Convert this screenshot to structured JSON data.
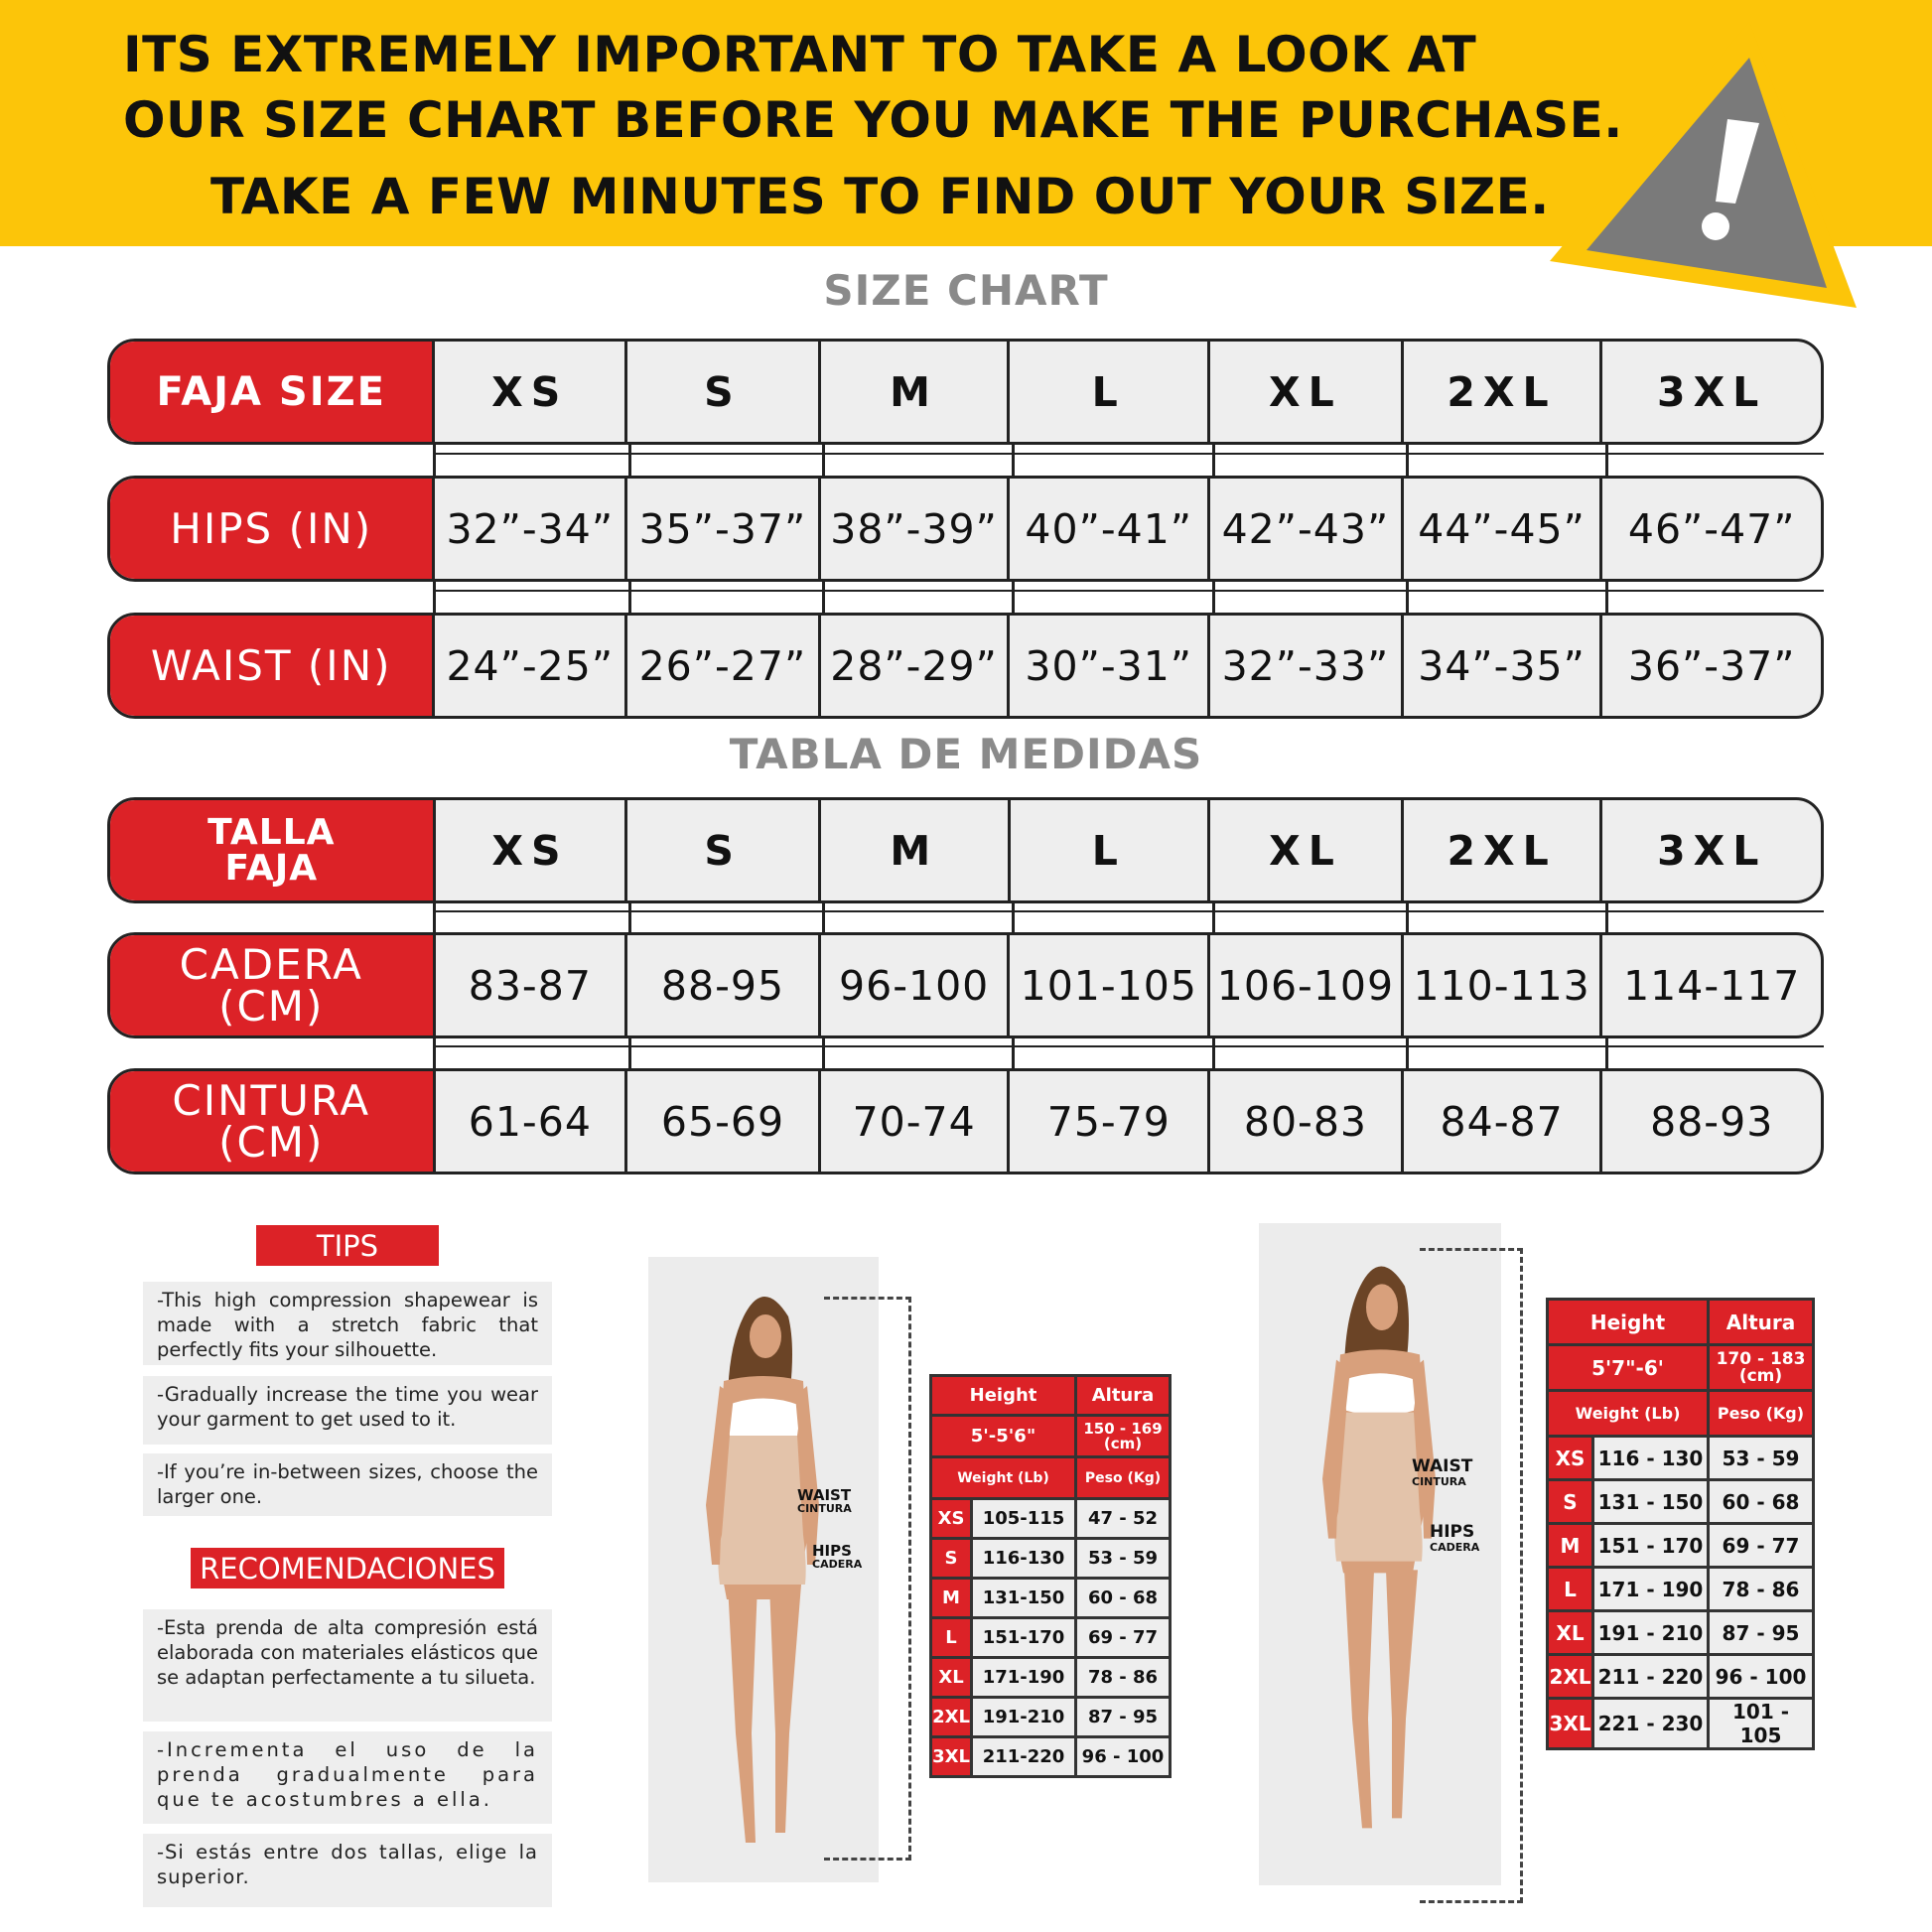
{
  "banner": {
    "line1": "ITS EXTREMELY IMPORTANT TO TAKE A LOOK AT",
    "line2": "OUR SIZE CHART BEFORE YOU MAKE THE PURCHASE.",
    "line3": "TAKE A FEW MINUTES TO FIND OUT YOUR SIZE.",
    "icon": "warning-triangle-icon",
    "color": "#fcc509"
  },
  "size_chart": {
    "title": "SIZE CHART",
    "rows": [
      {
        "label": "FAJA SIZE",
        "values": [
          "XS",
          "S",
          "M",
          "L",
          "XL",
          "2XL",
          "3XL"
        ]
      },
      {
        "label": "HIPS (IN)",
        "values": [
          "32”-34”",
          "35”-37”",
          "38”-39”",
          "40”-41”",
          "42”-43”",
          "44”-45”",
          "46”-47”"
        ]
      },
      {
        "label": "WAIST (IN)",
        "values": [
          "24”-25”",
          "26”-27”",
          "28”-29”",
          "30”-31”",
          "32”-33”",
          "34”-35”",
          "36”-37”"
        ]
      }
    ]
  },
  "tabla": {
    "title": "TABLA DE MEDIDAS",
    "rows": [
      {
        "label": "TALLA FAJA",
        "values": [
          "XS",
          "S",
          "M",
          "L",
          "XL",
          "2XL",
          "3XL"
        ]
      },
      {
        "label": "CADERA (CM)",
        "values": [
          "83-87",
          "88-95",
          "96-100",
          "101-105",
          "106-109",
          "110-113",
          "114-117"
        ]
      },
      {
        "label": "CINTURA (CM)",
        "values": [
          "61-64",
          "65-69",
          "70-74",
          "75-79",
          "80-83",
          "84-87",
          "88-93"
        ]
      }
    ]
  },
  "tips": {
    "title": "TIPS",
    "items": [
      "-This high compression shapewear is made with a stretch fabric that perfectly fits your silhouette.",
      "-Gradually increase the time you wear your garment to get used to it.",
      "-If you’re in-between sizes, choose the larger one."
    ]
  },
  "recomendaciones": {
    "title": "RECOMENDACIONES",
    "items": [
      "-Esta prenda de alta compresión está elaborada con materiales elásticos que se adaptan perfectamente a tu silueta.",
      "-Incrementa el uso de la prenda gradualmente para que te acostumbres a ella.",
      "-Si estás entre dos tallas, elige la superior."
    ]
  },
  "figure_labels": {
    "waist": "WAIST",
    "cintura": "CINTURA",
    "hips": "HIPS",
    "cadera": "CADERA"
  },
  "tables": [
    {
      "height_label": "Height",
      "altura_label": "Altura",
      "height": "5'-5'6\"",
      "altura": "150 - 169 (cm)",
      "weight_label": "Weight (Lb)",
      "peso_label": "Peso (Kg)",
      "rows": [
        [
          "XS",
          "105-115",
          "47 - 52"
        ],
        [
          "S",
          "116-130",
          "53 - 59"
        ],
        [
          "M",
          "131-150",
          "60 - 68"
        ],
        [
          "L",
          "151-170",
          "69 - 77"
        ],
        [
          "XL",
          "171-190",
          "78 - 86"
        ],
        [
          "2XL",
          "191-210",
          "87 - 95"
        ],
        [
          "3XL",
          "211-220",
          "96 - 100"
        ]
      ]
    },
    {
      "height_label": "Height",
      "altura_label": "Altura",
      "height": "5'7\"-6'",
      "altura": "170 - 183 (cm)",
      "weight_label": "Weight (Lb)",
      "peso_label": "Peso (Kg)",
      "rows": [
        [
          "XS",
          "116 - 130",
          "53 - 59"
        ],
        [
          "S",
          "131 - 150",
          "60 - 68"
        ],
        [
          "M",
          "151 - 170",
          "69 - 77"
        ],
        [
          "L",
          "171 - 190",
          "78 - 86"
        ],
        [
          "XL",
          "191 - 210",
          "87 - 95"
        ],
        [
          "2XL",
          "211 - 220",
          "96 - 100"
        ],
        [
          "3XL",
          "221 - 230",
          "101 - 105"
        ]
      ]
    }
  ],
  "colors": {
    "red": "#dc2227",
    "yellow": "#fcc509",
    "gray": "#8a8a8a"
  }
}
